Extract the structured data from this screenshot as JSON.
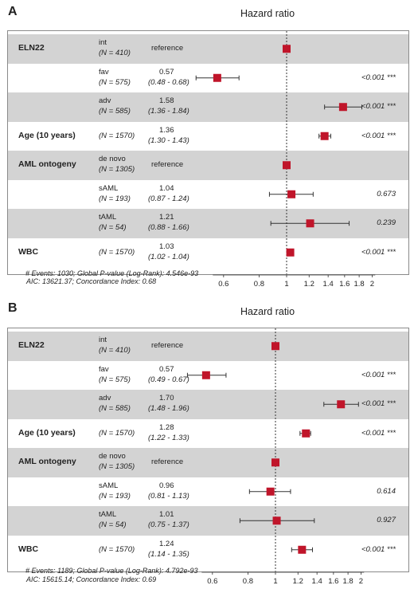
{
  "chart_data": [
    {
      "panel": "A",
      "type": "forest",
      "title": "Hazard ratio",
      "xscale": "log",
      "xlim": [
        0.5,
        2.15
      ],
      "xticks": [
        "0.6",
        "0.8",
        "1",
        "1.2",
        "1.4",
        "1.6",
        "1.8",
        "2"
      ],
      "reference_line": 1,
      "rows": [
        {
          "variable": "ELN22",
          "level": "int",
          "n": "(N = 410)",
          "hr_text": "reference",
          "ci_text": "",
          "hr": 1,
          "lo": null,
          "hi": null,
          "p": "",
          "shade": true
        },
        {
          "variable": "",
          "level": "fav",
          "n": "(N = 575)",
          "hr_text": "0.57",
          "ci_text": "(0.48 - 0.68)",
          "hr": 0.57,
          "lo": 0.48,
          "hi": 0.68,
          "p": "<0.001 ***",
          "shade": false
        },
        {
          "variable": "",
          "level": "adv",
          "n": "(N = 585)",
          "hr_text": "1.58",
          "ci_text": "(1.36 - 1.84)",
          "hr": 1.58,
          "lo": 1.36,
          "hi": 1.84,
          "p": "<0.001 ***",
          "shade": true
        },
        {
          "variable": "Age (10 years)",
          "level": "",
          "n": "(N = 1570)",
          "hr_text": "1.36",
          "ci_text": "(1.30 - 1.43)",
          "hr": 1.36,
          "lo": 1.3,
          "hi": 1.43,
          "p": "<0.001 ***",
          "shade": false
        },
        {
          "variable": "AML ontogeny",
          "level": "de novo",
          "n": "(N = 1305)",
          "hr_text": "reference",
          "ci_text": "",
          "hr": 1,
          "lo": null,
          "hi": null,
          "p": "",
          "shade": true
        },
        {
          "variable": "",
          "level": "sAML",
          "n": "(N = 193)",
          "hr_text": "1.04",
          "ci_text": "(0.87 - 1.24)",
          "hr": 1.04,
          "lo": 0.87,
          "hi": 1.24,
          "p": "0.673",
          "shade": false
        },
        {
          "variable": "",
          "level": "tAML",
          "n": "(N = 54)",
          "hr_text": "1.21",
          "ci_text": "(0.88 - 1.66)",
          "hr": 1.21,
          "lo": 0.88,
          "hi": 1.66,
          "p": "0.239",
          "shade": true
        },
        {
          "variable": "WBC",
          "level": "",
          "n": "(N = 1570)",
          "hr_text": "1.03",
          "ci_text": "(1.02 - 1.04)",
          "hr": 1.03,
          "lo": 1.02,
          "hi": 1.04,
          "p": "<0.001 ***",
          "shade": false
        }
      ],
      "events_text": "# Events: 1030; Global P-value (Log-Rank): 4.546e-93",
      "aic_text": "AIC: 13621.37; Concordance Index: 0.68"
    },
    {
      "panel": "B",
      "type": "forest",
      "title": "Hazard ratio",
      "xscale": "log",
      "xlim": [
        0.5,
        2.15
      ],
      "xticks": [
        "0.6",
        "0.8",
        "1",
        "1.2",
        "1.4",
        "1.6",
        "1.8",
        "2"
      ],
      "reference_line": 1,
      "rows": [
        {
          "variable": "ELN22",
          "level": "int",
          "n": "(N = 410)",
          "hr_text": "reference",
          "ci_text": "",
          "hr": 1,
          "lo": null,
          "hi": null,
          "p": "",
          "shade": true
        },
        {
          "variable": "",
          "level": "fav",
          "n": "(N = 575)",
          "hr_text": "0.57",
          "ci_text": "(0.49 - 0.67)",
          "hr": 0.57,
          "lo": 0.49,
          "hi": 0.67,
          "p": "<0.001 ***",
          "shade": false
        },
        {
          "variable": "",
          "level": "adv",
          "n": "(N = 585)",
          "hr_text": "1.70",
          "ci_text": "(1.48 - 1.96)",
          "hr": 1.7,
          "lo": 1.48,
          "hi": 1.96,
          "p": "<0.001 ***",
          "shade": true
        },
        {
          "variable": "Age (10 years)",
          "level": "",
          "n": "(N = 1570)",
          "hr_text": "1.28",
          "ci_text": "(1.22 - 1.33)",
          "hr": 1.28,
          "lo": 1.22,
          "hi": 1.33,
          "p": "<0.001 ***",
          "shade": false
        },
        {
          "variable": "AML ontogeny",
          "level": "de novo",
          "n": "(N = 1305)",
          "hr_text": "reference",
          "ci_text": "",
          "hr": 1,
          "lo": null,
          "hi": null,
          "p": "",
          "shade": true
        },
        {
          "variable": "",
          "level": "sAML",
          "n": "(N = 193)",
          "hr_text": "0.96",
          "ci_text": "(0.81 - 1.13)",
          "hr": 0.96,
          "lo": 0.81,
          "hi": 1.13,
          "p": "0.614",
          "shade": false
        },
        {
          "variable": "",
          "level": "tAML",
          "n": "(N = 54)",
          "hr_text": "1.01",
          "ci_text": "(0.75 - 1.37)",
          "hr": 1.01,
          "lo": 0.75,
          "hi": 1.37,
          "p": "0.927",
          "shade": true
        },
        {
          "variable": "WBC",
          "level": "",
          "n": "(N = 1570)",
          "hr_text": "1.24",
          "ci_text": "(1.14 - 1.35)",
          "hr": 1.24,
          "lo": 1.14,
          "hi": 1.35,
          "p": "<0.001 ***",
          "shade": false
        }
      ],
      "events_text": "# Events: 1189; Global P-value (Log-Rank): 4.792e-93",
      "aic_text": "AIC: 15615.14; Concordance Index: 0.69"
    }
  ],
  "colors": {
    "marker": "#c0152a",
    "band": "#d3d3d3",
    "line": "#333333"
  }
}
